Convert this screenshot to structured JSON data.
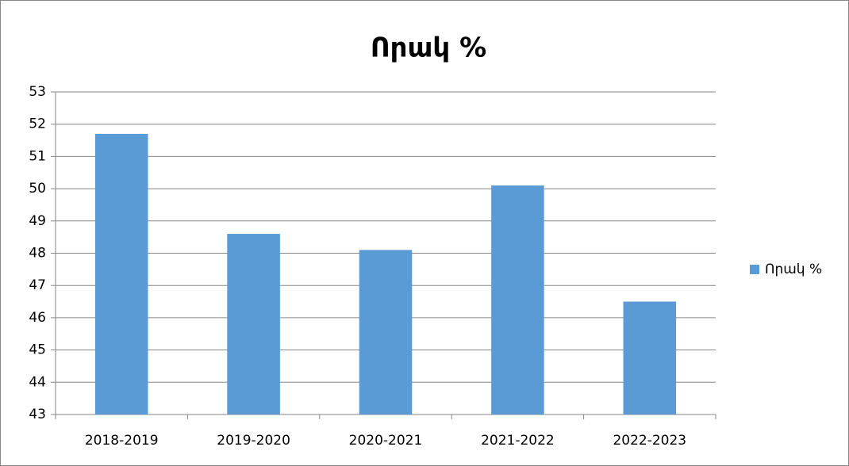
{
  "chart_data": {
    "type": "bar",
    "title": "Որակ %",
    "categories": [
      "2018-2019",
      "2019-2020",
      "2020-2021",
      "2021-2022",
      "2022-2023"
    ],
    "series": [
      {
        "name": "Որակ %",
        "color": "#5b9bd5",
        "values": [
          51.7,
          48.6,
          48.1,
          50.1,
          46.5
        ]
      }
    ],
    "ylim": [
      43,
      53
    ],
    "yticks": [
      43,
      44,
      45,
      46,
      47,
      48,
      49,
      50,
      51,
      52,
      53
    ],
    "grid": true,
    "legend": "right"
  }
}
